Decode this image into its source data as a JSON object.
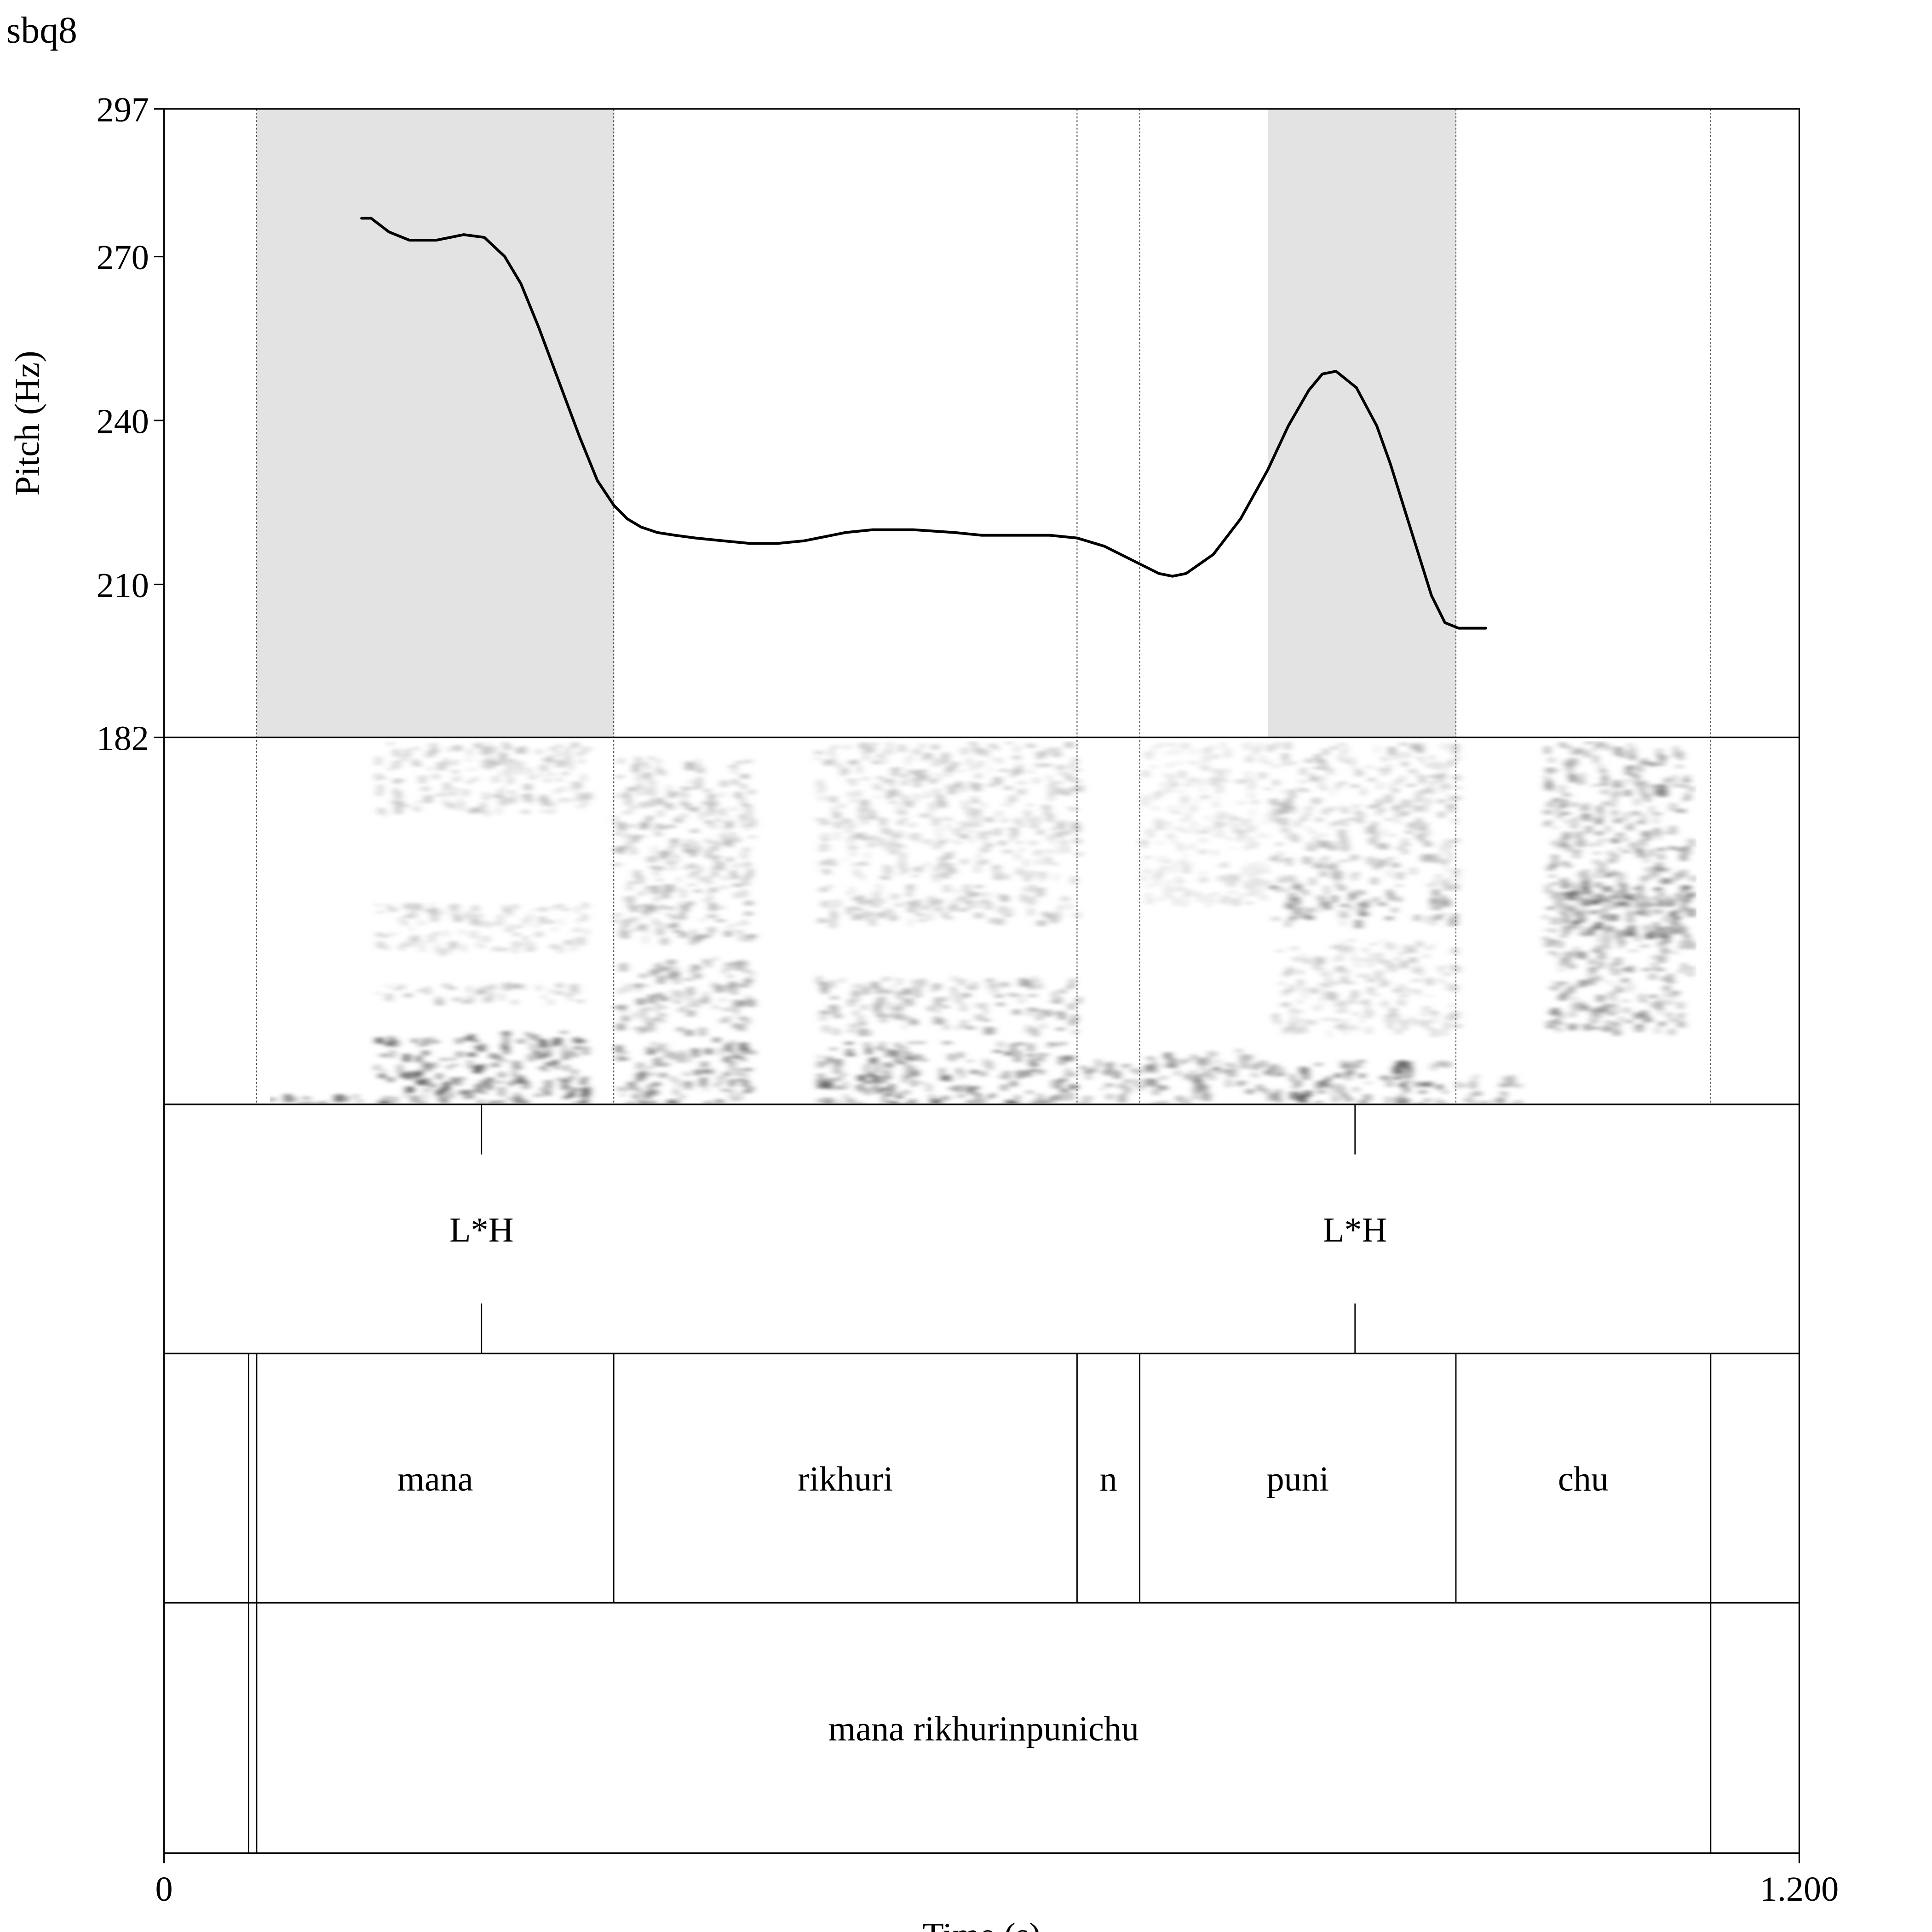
{
  "title": "sbq8",
  "chart_data": {
    "type": "line",
    "title": "sbq8",
    "xlabel": "Time (s)",
    "ylabel": "Pitch (Hz)",
    "xlim": [
      0,
      1.2
    ],
    "ylim": [
      182,
      297
    ],
    "x_ticks": [
      "0",
      "1.200"
    ],
    "y_ticks": [
      182,
      210,
      240,
      270,
      297
    ],
    "series": [
      {
        "values_x": [
          0.145,
          0.152,
          0.165,
          0.18,
          0.2,
          0.22,
          0.235,
          0.25,
          0.262,
          0.275,
          0.29,
          0.305,
          0.318,
          0.33,
          0.34,
          0.35,
          0.362,
          0.375,
          0.39,
          0.41,
          0.43,
          0.45,
          0.47,
          0.49,
          0.5
        ],
        "values_y": [
          277,
          277,
          274.5,
          273,
          273,
          274,
          273.5,
          270,
          265,
          257,
          247,
          237,
          229,
          224.5,
          222,
          220.5,
          219.5,
          219,
          218.5,
          218,
          217.5,
          217.5,
          218,
          219,
          219.5
        ],
        "name": ""
      },
      {
        "values_x": [
          0.5,
          0.52,
          0.55,
          0.58,
          0.6,
          0.62,
          0.65,
          0.67,
          0.69,
          0.71,
          0.73,
          0.74,
          0.75,
          0.77,
          0.79,
          0.81,
          0.825,
          0.84,
          0.85,
          0.86,
          0.875,
          0.89,
          0.9,
          0.91,
          0.92,
          0.93,
          0.94,
          0.95,
          0.96,
          0.97
        ],
        "values_y": [
          219.5,
          220,
          220,
          219.5,
          219,
          219,
          219,
          218.5,
          217,
          214.5,
          212,
          211.5,
          212,
          215.5,
          222,
          231,
          239,
          245.5,
          248.5,
          249,
          246,
          239,
          232,
          224,
          216,
          208,
          203,
          202,
          202,
          202
        ],
        "name": ""
      }
    ],
    "shaded_intervals_s": [
      [
        0.068,
        0.33
      ],
      [
        0.81,
        0.948
      ]
    ],
    "interval_boundaries_s": [
      0.068,
      0.33,
      0.67,
      0.716,
      0.948,
      1.135
    ],
    "tiers": [
      {
        "tier": 1,
        "type": "point",
        "points": [
          {
            "time": 0.233,
            "label": "L*H"
          },
          {
            "time": 0.874,
            "label": "L*H"
          }
        ]
      },
      {
        "tier": 2,
        "type": "interval",
        "intervals": [
          {
            "start": 0.068,
            "end": 0.33,
            "label": "mana"
          },
          {
            "start": 0.33,
            "end": 0.67,
            "label": "rikhuri"
          },
          {
            "start": 0.67,
            "end": 0.716,
            "label": "n"
          },
          {
            "start": 0.716,
            "end": 0.948,
            "label": "puni"
          },
          {
            "start": 0.948,
            "end": 1.135,
            "label": "chu"
          }
        ]
      },
      {
        "tier": 3,
        "type": "interval",
        "intervals": [
          {
            "start": 0.068,
            "end": 1.135,
            "label": "mana rikhurinpunichu"
          }
        ]
      }
    ],
    "grid": false,
    "legend": "none"
  }
}
